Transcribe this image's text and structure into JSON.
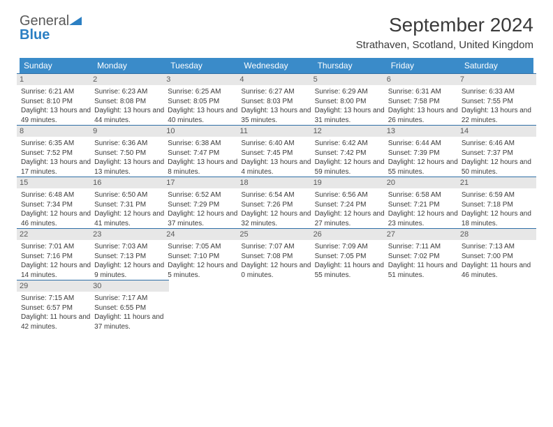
{
  "logo": {
    "text1": "General",
    "text2": "Blue",
    "icon_color": "#2b7fc3"
  },
  "title": "September 2024",
  "location": "Strathaven, Scotland, United Kingdom",
  "colors": {
    "header_bg": "#3a8bc9",
    "header_text": "#ffffff",
    "daynum_bg": "#e7e7e7",
    "border": "#2f6fa6",
    "text": "#3a3a3a"
  },
  "day_headers": [
    "Sunday",
    "Monday",
    "Tuesday",
    "Wednesday",
    "Thursday",
    "Friday",
    "Saturday"
  ],
  "weeks": [
    [
      {
        "n": "1",
        "sr": "6:21 AM",
        "ss": "8:10 PM",
        "dl": "13 hours and 49 minutes."
      },
      {
        "n": "2",
        "sr": "6:23 AM",
        "ss": "8:08 PM",
        "dl": "13 hours and 44 minutes."
      },
      {
        "n": "3",
        "sr": "6:25 AM",
        "ss": "8:05 PM",
        "dl": "13 hours and 40 minutes."
      },
      {
        "n": "4",
        "sr": "6:27 AM",
        "ss": "8:03 PM",
        "dl": "13 hours and 35 minutes."
      },
      {
        "n": "5",
        "sr": "6:29 AM",
        "ss": "8:00 PM",
        "dl": "13 hours and 31 minutes."
      },
      {
        "n": "6",
        "sr": "6:31 AM",
        "ss": "7:58 PM",
        "dl": "13 hours and 26 minutes."
      },
      {
        "n": "7",
        "sr": "6:33 AM",
        "ss": "7:55 PM",
        "dl": "13 hours and 22 minutes."
      }
    ],
    [
      {
        "n": "8",
        "sr": "6:35 AM",
        "ss": "7:52 PM",
        "dl": "13 hours and 17 minutes."
      },
      {
        "n": "9",
        "sr": "6:36 AM",
        "ss": "7:50 PM",
        "dl": "13 hours and 13 minutes."
      },
      {
        "n": "10",
        "sr": "6:38 AM",
        "ss": "7:47 PM",
        "dl": "13 hours and 8 minutes."
      },
      {
        "n": "11",
        "sr": "6:40 AM",
        "ss": "7:45 PM",
        "dl": "13 hours and 4 minutes."
      },
      {
        "n": "12",
        "sr": "6:42 AM",
        "ss": "7:42 PM",
        "dl": "12 hours and 59 minutes."
      },
      {
        "n": "13",
        "sr": "6:44 AM",
        "ss": "7:39 PM",
        "dl": "12 hours and 55 minutes."
      },
      {
        "n": "14",
        "sr": "6:46 AM",
        "ss": "7:37 PM",
        "dl": "12 hours and 50 minutes."
      }
    ],
    [
      {
        "n": "15",
        "sr": "6:48 AM",
        "ss": "7:34 PM",
        "dl": "12 hours and 46 minutes."
      },
      {
        "n": "16",
        "sr": "6:50 AM",
        "ss": "7:31 PM",
        "dl": "12 hours and 41 minutes."
      },
      {
        "n": "17",
        "sr": "6:52 AM",
        "ss": "7:29 PM",
        "dl": "12 hours and 37 minutes."
      },
      {
        "n": "18",
        "sr": "6:54 AM",
        "ss": "7:26 PM",
        "dl": "12 hours and 32 minutes."
      },
      {
        "n": "19",
        "sr": "6:56 AM",
        "ss": "7:24 PM",
        "dl": "12 hours and 27 minutes."
      },
      {
        "n": "20",
        "sr": "6:58 AM",
        "ss": "7:21 PM",
        "dl": "12 hours and 23 minutes."
      },
      {
        "n": "21",
        "sr": "6:59 AM",
        "ss": "7:18 PM",
        "dl": "12 hours and 18 minutes."
      }
    ],
    [
      {
        "n": "22",
        "sr": "7:01 AM",
        "ss": "7:16 PM",
        "dl": "12 hours and 14 minutes."
      },
      {
        "n": "23",
        "sr": "7:03 AM",
        "ss": "7:13 PM",
        "dl": "12 hours and 9 minutes."
      },
      {
        "n": "24",
        "sr": "7:05 AM",
        "ss": "7:10 PM",
        "dl": "12 hours and 5 minutes."
      },
      {
        "n": "25",
        "sr": "7:07 AM",
        "ss": "7:08 PM",
        "dl": "12 hours and 0 minutes."
      },
      {
        "n": "26",
        "sr": "7:09 AM",
        "ss": "7:05 PM",
        "dl": "11 hours and 55 minutes."
      },
      {
        "n": "27",
        "sr": "7:11 AM",
        "ss": "7:02 PM",
        "dl": "11 hours and 51 minutes."
      },
      {
        "n": "28",
        "sr": "7:13 AM",
        "ss": "7:00 PM",
        "dl": "11 hours and 46 minutes."
      }
    ],
    [
      {
        "n": "29",
        "sr": "7:15 AM",
        "ss": "6:57 PM",
        "dl": "11 hours and 42 minutes."
      },
      {
        "n": "30",
        "sr": "7:17 AM",
        "ss": "6:55 PM",
        "dl": "11 hours and 37 minutes."
      },
      null,
      null,
      null,
      null,
      null
    ]
  ],
  "labels": {
    "sunrise": "Sunrise:",
    "sunset": "Sunset:",
    "daylight": "Daylight:"
  }
}
